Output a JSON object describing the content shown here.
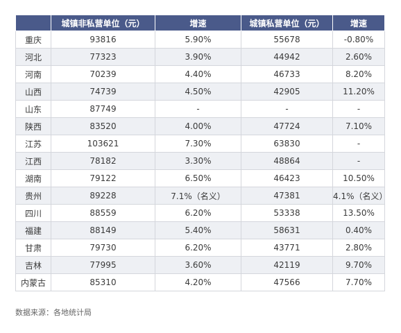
{
  "table": {
    "headers": [
      "",
      "城镇非私营单位（元）",
      "增速",
      "城镇私营单位（元）",
      "增速"
    ],
    "rows": [
      [
        "重庆",
        "93816",
        "5.90%",
        "55678",
        "-0.80%"
      ],
      [
        "河北",
        "77323",
        "3.90%",
        "44942",
        "2.60%"
      ],
      [
        "河南",
        "70239",
        "4.40%",
        "46733",
        "8.20%"
      ],
      [
        "山西",
        "74739",
        "4.50%",
        "42905",
        "11.20%"
      ],
      [
        "山东",
        "87749",
        "-",
        "-",
        "-"
      ],
      [
        "陕西",
        "83520",
        "4.00%",
        "47724",
        "7.10%"
      ],
      [
        "江苏",
        "103621",
        "7.30%",
        "63830",
        "-"
      ],
      [
        "江西",
        "78182",
        "3.30%",
        "48864",
        "-"
      ],
      [
        "湖南",
        "79122",
        "6.50%",
        "46423",
        "10.50%"
      ],
      [
        "贵州",
        "89228",
        "7.1%（名义）",
        "47381",
        "4.1%（名义）"
      ],
      [
        "四川",
        "88559",
        "6.20%",
        "53338",
        "13.50%"
      ],
      [
        "福建",
        "88149",
        "5.40%",
        "58631",
        "0.40%"
      ],
      [
        "甘肃",
        "79730",
        "6.20%",
        "43771",
        "2.80%"
      ],
      [
        "吉林",
        "77995",
        "3.60%",
        "42119",
        "9.70%"
      ],
      [
        "内蒙古",
        "85310",
        "4.20%",
        "47566",
        "7.70%"
      ]
    ]
  },
  "source_note": "数据来源：各地统计局",
  "colors": {
    "header_bg": "#4a5a8a",
    "header_text": "#ffffff",
    "stripe_bg": "#eef0f4",
    "border": "#d4d6dc"
  }
}
